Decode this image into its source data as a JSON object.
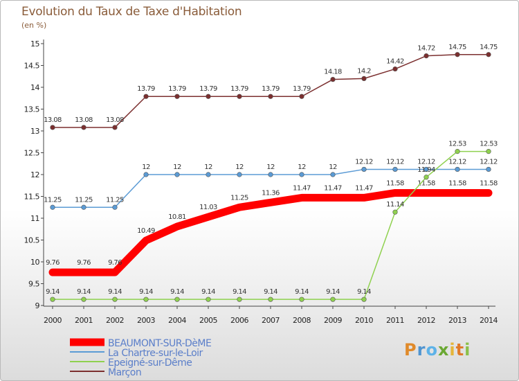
{
  "title": "Evolution du Taux de Taxe d'Habitation",
  "unit": "(en %)",
  "logo": "Proxiti",
  "chart_data": {
    "type": "line",
    "x": [
      2000,
      2001,
      2002,
      2003,
      2004,
      2005,
      2006,
      2007,
      2008,
      2009,
      2010,
      2011,
      2012,
      2013,
      2014
    ],
    "ylim": [
      9,
      15
    ],
    "yticks": [
      "9",
      "9.5",
      "10",
      "10.5",
      "11",
      "11.5",
      "12",
      "12.5",
      "13",
      "13.5",
      "14",
      "14.5",
      "15"
    ],
    "xlabel": "",
    "ylabel": "",
    "grid": false,
    "legend": "bottom-left",
    "series": [
      {
        "name": "Marçon",
        "color": "#7b2f2f",
        "values": [
          13.08,
          13.08,
          13.08,
          13.79,
          13.79,
          13.79,
          13.79,
          13.79,
          13.79,
          14.18,
          14.2,
          14.42,
          14.72,
          14.75,
          14.75
        ],
        "labels": [
          "13.08",
          "13.08",
          "13.08",
          "13.79",
          "13.79",
          "13.79",
          "13.79",
          "13.79",
          "13.79",
          "14.18",
          "14.2",
          "14.42",
          "14.72",
          "14.75",
          "14.75"
        ]
      },
      {
        "name": "La Chartre-sur-le-Loir",
        "color": "#5b9bd5",
        "values": [
          11.25,
          11.25,
          11.25,
          12,
          12,
          12,
          12,
          12,
          12,
          12,
          12.12,
          12.12,
          12.12,
          12.12,
          12.12
        ],
        "labels": [
          "11.25",
          "11.25",
          "11.25",
          "12",
          "12",
          "12",
          "12",
          "12",
          "12",
          "12",
          "12.12",
          "12.12",
          "12.12",
          "12.12",
          "12.12"
        ]
      },
      {
        "name": "BEAUMONT-SUR-DèME",
        "color": "#ff0000",
        "values": [
          9.76,
          9.76,
          9.76,
          10.49,
          10.81,
          11.03,
          11.25,
          11.36,
          11.47,
          11.47,
          11.47,
          11.58,
          11.58,
          11.58,
          11.58
        ],
        "labels": [
          "9.76",
          "9.76",
          "9.76",
          "10.49",
          "10.81",
          "11.03",
          "11.25",
          "11.36",
          "11.47",
          "11.47",
          "11.47",
          "11.58",
          "11.58",
          "11.58",
          "11.58"
        ]
      },
      {
        "name": "Epeigné-sur-Dême",
        "color": "#8fd14f",
        "values": [
          9.14,
          9.14,
          9.14,
          9.14,
          9.14,
          9.14,
          9.14,
          9.14,
          9.14,
          9.14,
          9.14,
          11.14,
          11.94,
          12.53,
          12.53
        ],
        "labels": [
          "9.14",
          "9.14",
          "9.14",
          "9.14",
          "9.14",
          "9.14",
          "9.14",
          "9.14",
          "9.14",
          "9.14",
          "9.14",
          "11.14",
          "11.94",
          "12.53",
          "12.53"
        ]
      }
    ]
  }
}
